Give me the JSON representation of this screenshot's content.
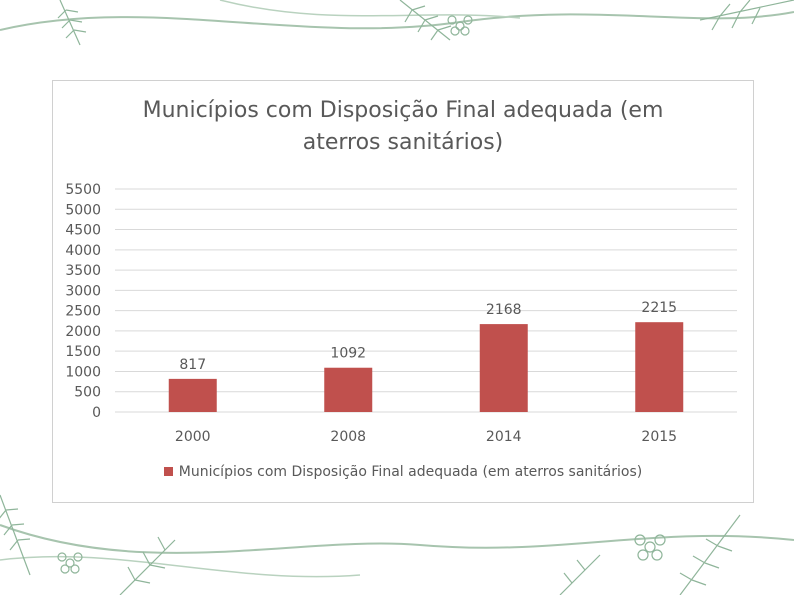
{
  "chart_data": {
    "type": "bar",
    "title": "Municípios com Disposição Final adequada (em aterros sanitários)",
    "title_lines": [
      "Municípios com Disposição Final adequada (em",
      "aterros sanitários)"
    ],
    "categories": [
      "2000",
      "2008",
      "2014",
      "2015"
    ],
    "series": [
      {
        "name": "Municípios com Disposição Final adequada (em aterros sanitários)",
        "values": [
          817,
          1092,
          2168,
          2215
        ],
        "color": "#c0504d"
      }
    ],
    "data_labels": [
      "817",
      "1092",
      "2168",
      "2215"
    ],
    "yticks": [
      "0",
      "500",
      "1000",
      "1500",
      "2000",
      "2500",
      "3000",
      "3500",
      "4000",
      "4500",
      "5000",
      "5500"
    ],
    "ylim": [
      0,
      5500
    ],
    "xlabel": "",
    "ylabel": "",
    "grid": true,
    "legend_position": "bottom"
  },
  "colors": {
    "bar": "#c0504d",
    "gridline": "#d9d9d9",
    "text": "#595959",
    "decoration": "#9dbfa6"
  }
}
